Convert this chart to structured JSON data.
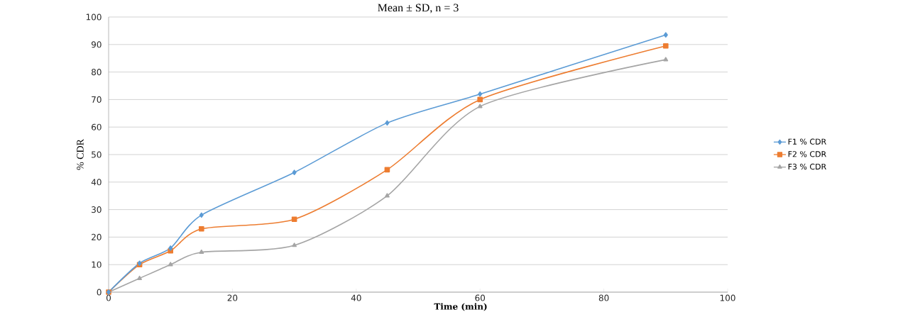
{
  "chart_data": {
    "type": "line",
    "title": "Mean ± SD, n = 3",
    "xlabel": "Time (min)",
    "ylabel": "% CDR",
    "x": [
      0,
      5,
      10,
      15,
      30,
      45,
      60,
      90
    ],
    "series": [
      {
        "name": "F1 % CDR",
        "color": "#5b9bd5",
        "marker": "diamond",
        "values": [
          0,
          10.5,
          16,
          28,
          43.5,
          61.5,
          72,
          93.5
        ]
      },
      {
        "name": "F2 % CDR",
        "color": "#ed7d31",
        "marker": "square",
        "values": [
          0,
          10,
          15,
          23,
          26.5,
          44.5,
          70,
          89.5
        ]
      },
      {
        "name": "F3 % CDR",
        "color": "#a5a5a5",
        "marker": "triangle",
        "values": [
          0,
          5,
          10,
          14.5,
          17,
          35,
          67.5,
          84.5
        ]
      }
    ],
    "xlim": [
      0,
      100
    ],
    "xticks": [
      0,
      20,
      40,
      60,
      80,
      100
    ],
    "ylim": [
      0,
      100
    ],
    "yticks": [
      0,
      10,
      20,
      30,
      40,
      50,
      60,
      70,
      80,
      90,
      100
    ],
    "grid": "y",
    "legend": "right",
    "line_style": "solid"
  }
}
